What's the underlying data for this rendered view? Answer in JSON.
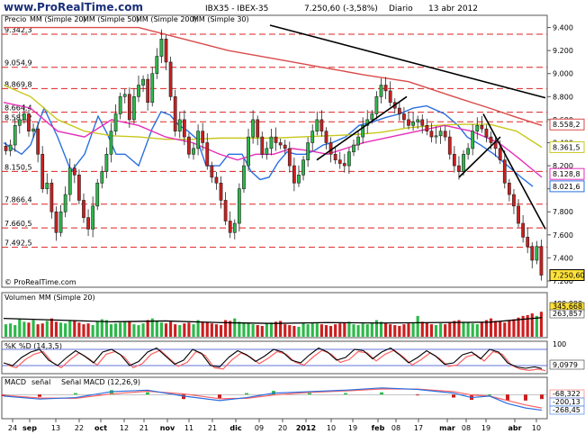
{
  "header": {
    "logo": "www.ProRealTime.com",
    "symbol": "IBX35 - IBEX-35",
    "last": "7.250,60 (-3,58%)",
    "period": "Diario",
    "date": "13 abr 2012",
    "watermark": "© ProRealTime.com"
  },
  "colors": {
    "up": "#2db84a",
    "down": "#cc1f1f",
    "sma20": "#2a6fe0",
    "sma50": "#c8c81e",
    "sma200": "#d94a4a",
    "sma30": "#e62fb8",
    "hlines": "#dd2222",
    "trend": "#000000",
    "volume_up": "#2db84a",
    "volume_down": "#cc1f1f",
    "pct_k": "#000000",
    "pct_d": "#ff6060",
    "macd": "#2a6fe0",
    "signal": "#ff6060",
    "hist": "#2db84a"
  },
  "legend": {
    "precio": "Precio",
    "sma20": "MM (Simple 20)",
    "sma50": "MM (Simple 50)",
    "sma200": "MM (Simple 200)",
    "sma30": "MM (Simple 30)"
  },
  "chart_data": {
    "type": "candlestick",
    "x_labels": [
      "24",
      "sep",
      "13",
      "22",
      "oct",
      "12",
      "21",
      "nov",
      "11",
      "21",
      "dic",
      "09",
      "20",
      "2012",
      "10",
      "19",
      "feb",
      "08",
      "17",
      "mar",
      "08",
      "19",
      "abr",
      "10"
    ],
    "ylim": [
      7200,
      9420
    ],
    "y_ticks": [
      "9.400",
      "9.200",
      "9.000",
      "8.800",
      "8.600",
      "8.400",
      "8.200",
      "8.000",
      "7.800",
      "7.600",
      "7.400",
      "7.200"
    ],
    "y_tick_values": [
      9400,
      9200,
      9000,
      8800,
      8600,
      8400,
      8200,
      8000,
      7800,
      7600,
      7400,
      7200
    ],
    "hlines": [
      {
        "label": "9.342,3",
        "value": 9342.3
      },
      {
        "label": "9.054,9",
        "value": 9054.9
      },
      {
        "label": "8.869,8",
        "value": 8869.8
      },
      {
        "label": "8.664,4",
        "value": 8664.4
      },
      {
        "label": "8.581,2",
        "value": 8581.2
      },
      {
        "label": "8.150,5",
        "value": 8150.5
      },
      {
        "label": "7.866,4",
        "value": 7866.4
      },
      {
        "label": "7.660,5",
        "value": 7660.5
      },
      {
        "label": "7.492,5",
        "value": 7492.5
      }
    ],
    "closes": [
      8330,
      8380,
      8550,
      8600,
      8650,
      8500,
      8520,
      8300,
      8000,
      8050,
      7800,
      7620,
      7800,
      7950,
      8180,
      8120,
      7900,
      7750,
      7650,
      7850,
      8050,
      8150,
      8300,
      8500,
      8650,
      8800,
      8820,
      8600,
      8800,
      8900,
      8950,
      8750,
      9000,
      9150,
      9300,
      9100,
      8800,
      8500,
      8600,
      8450,
      8300,
      8350,
      8500,
      8400,
      8200,
      8100,
      8050,
      7900,
      7720,
      7620,
      7700,
      8000,
      8200,
      8450,
      8600,
      8450,
      8300,
      8350,
      8450,
      8400,
      8380,
      8350,
      8200,
      8050,
      8120,
      8250,
      8400,
      8500,
      8600,
      8500,
      8400,
      8300,
      8250,
      8220,
      8200,
      8320,
      8380,
      8450,
      8550,
      8600,
      8650,
      8800,
      8900,
      8850,
      8750,
      8700,
      8650,
      8600,
      8550,
      8580,
      8600,
      8550,
      8500,
      8450,
      8460,
      8500,
      8450,
      8300,
      8200,
      8150,
      8300,
      8350,
      8500,
      8550,
      8520,
      8450,
      8400,
      8350,
      8250,
      8050,
      7950,
      7850,
      7700,
      7580,
      7500,
      7380,
      7500,
      7250
    ],
    "ma_series": [
      {
        "name": "MM (Simple 20)",
        "color_key": "sma20",
        "points": [
          [
            0,
            8400
          ],
          [
            20,
            8300
          ],
          [
            30,
            8380
          ],
          [
            45,
            8700
          ],
          [
            60,
            8450
          ],
          [
            75,
            8150
          ],
          [
            90,
            8300
          ],
          [
            105,
            8630
          ],
          [
            115,
            8480
          ],
          [
            125,
            8300
          ],
          [
            135,
            8300
          ],
          [
            150,
            8200
          ],
          [
            165,
            8520
          ],
          [
            175,
            8670
          ],
          [
            185,
            8640
          ],
          [
            195,
            8550
          ],
          [
            205,
            8500
          ],
          [
            215,
            8430
          ],
          [
            225,
            8200
          ],
          [
            240,
            8200
          ],
          [
            250,
            8300
          ],
          [
            265,
            8300
          ],
          [
            275,
            8150
          ],
          [
            285,
            8080
          ],
          [
            295,
            8100
          ],
          [
            305,
            8230
          ],
          [
            315,
            8320
          ],
          [
            325,
            8300
          ],
          [
            335,
            8300
          ],
          [
            345,
            8330
          ],
          [
            355,
            8380
          ],
          [
            365,
            8400
          ],
          [
            380,
            8450
          ],
          [
            395,
            8550
          ],
          [
            410,
            8580
          ],
          [
            425,
            8620
          ],
          [
            440,
            8650
          ],
          [
            455,
            8700
          ],
          [
            470,
            8720
          ],
          [
            490,
            8650
          ],
          [
            505,
            8550
          ],
          [
            515,
            8450
          ],
          [
            530,
            8380
          ],
          [
            545,
            8300
          ],
          [
            560,
            8200
          ],
          [
            575,
            8100
          ],
          [
            588,
            8020
          ]
        ]
      },
      {
        "name": "MM (Simple 50)",
        "color_key": "sma50",
        "points": [
          [
            0,
            8900
          ],
          [
            30,
            8800
          ],
          [
            60,
            8600
          ],
          [
            90,
            8500
          ],
          [
            120,
            8460
          ],
          [
            150,
            8450
          ],
          [
            180,
            8430
          ],
          [
            210,
            8430
          ],
          [
            240,
            8440
          ],
          [
            270,
            8440
          ],
          [
            300,
            8440
          ],
          [
            330,
            8450
          ],
          [
            360,
            8460
          ],
          [
            390,
            8470
          ],
          [
            420,
            8490
          ],
          [
            450,
            8530
          ],
          [
            480,
            8550
          ],
          [
            510,
            8560
          ],
          [
            540,
            8560
          ],
          [
            570,
            8500
          ],
          [
            598,
            8360
          ]
        ]
      },
      {
        "name": "MM (Simple 200)",
        "color_key": "sma200",
        "points": [
          [
            0,
            9400
          ],
          [
            100,
            9400
          ],
          [
            150,
            9400
          ],
          [
            200,
            9300
          ],
          [
            250,
            9200
          ],
          [
            300,
            9130
          ],
          [
            350,
            9060
          ],
          [
            400,
            8990
          ],
          [
            450,
            8930
          ],
          [
            500,
            8800
          ],
          [
            540,
            8700
          ],
          [
            570,
            8620
          ],
          [
            598,
            8550
          ]
        ]
      },
      {
        "name": "MM (Simple 30)",
        "color_key": "sma30",
        "points": [
          [
            0,
            8750
          ],
          [
            30,
            8700
          ],
          [
            60,
            8500
          ],
          [
            90,
            8450
          ],
          [
            120,
            8600
          ],
          [
            150,
            8550
          ],
          [
            180,
            8450
          ],
          [
            210,
            8400
          ],
          [
            240,
            8300
          ],
          [
            260,
            8250
          ],
          [
            280,
            8300
          ],
          [
            300,
            8300
          ],
          [
            320,
            8350
          ],
          [
            340,
            8330
          ],
          [
            360,
            8300
          ],
          [
            380,
            8350
          ],
          [
            400,
            8400
          ],
          [
            430,
            8450
          ],
          [
            460,
            8500
          ],
          [
            490,
            8550
          ],
          [
            520,
            8500
          ],
          [
            550,
            8400
          ],
          [
            570,
            8280
          ],
          [
            598,
            8100
          ]
        ]
      }
    ],
    "trendlines": [
      {
        "from": [
          300,
          9420
        ],
        "to": [
          606,
          8790
        ]
      },
      {
        "from": [
          352,
          8250
        ],
        "to": [
          452,
          8800
        ]
      },
      {
        "from": [
          510,
          8100
        ],
        "to": [
          556,
          8450
        ]
      },
      {
        "from": [
          537,
          8650
        ],
        "to": [
          606,
          7650
        ]
      }
    ],
    "last_labels": [
      {
        "text": "8.558,2",
        "value": 8558.2,
        "color_key": "sma200"
      },
      {
        "text": "8.361,5",
        "value": 8361.5,
        "color_key": "sma50"
      },
      {
        "text": "8.128,8",
        "value": 8128.8,
        "color_key": "sma30"
      },
      {
        "text": "8.021,6",
        "value": 8021.6,
        "color_key": "sma20"
      },
      {
        "text": "7.250,60",
        "value": 7250.6,
        "color_key": "price"
      }
    ],
    "volume": {
      "label": "Volumen",
      "ma_label": "MM (Simple 20)",
      "ylim": [
        0,
        400
      ],
      "y_ticks": [
        "400,000"
      ],
      "last_labels": [
        "345,668",
        "263,857"
      ],
      "values": [
        150,
        160,
        140,
        210,
        180,
        170,
        200,
        150,
        160,
        190,
        220,
        180,
        170,
        160,
        190,
        200,
        170,
        150,
        160,
        140,
        180,
        210,
        200,
        150,
        160,
        170,
        180,
        190,
        150,
        140,
        160,
        200,
        220,
        190,
        170,
        160,
        180,
        150,
        140,
        160,
        170,
        150,
        200,
        180,
        170,
        160,
        150,
        140,
        200,
        190,
        220,
        180,
        170,
        160,
        150,
        140,
        130,
        160,
        170,
        180,
        190,
        150,
        140,
        130,
        120,
        160,
        150,
        170,
        160,
        150,
        140,
        130,
        150,
        160,
        170,
        180,
        150,
        140,
        160,
        150,
        170,
        200,
        180,
        160,
        150,
        140,
        130,
        150,
        160,
        170,
        250,
        180,
        170,
        150,
        140,
        160,
        150,
        170,
        190,
        200,
        180,
        170,
        160,
        150,
        180,
        200,
        220,
        190,
        180,
        170,
        200,
        210,
        230,
        250,
        260,
        280,
        250,
        300
      ],
      "ma": [
        [
          0,
          220
        ],
        [
          60,
          200
        ],
        [
          120,
          180
        ],
        [
          180,
          190
        ],
        [
          240,
          170
        ],
        [
          300,
          160
        ],
        [
          360,
          170
        ],
        [
          420,
          165
        ],
        [
          480,
          170
        ],
        [
          540,
          175
        ],
        [
          598,
          230
        ]
      ]
    },
    "stochastic": {
      "label": "%K",
      "d_label": "%D (14,3,5)",
      "ylim": [
        0,
        100
      ],
      "y_ticks": [
        "100"
      ],
      "last_label": "9,0979",
      "k": [
        [
          0,
          30
        ],
        [
          10,
          20
        ],
        [
          20,
          50
        ],
        [
          30,
          70
        ],
        [
          40,
          80
        ],
        [
          50,
          40
        ],
        [
          60,
          20
        ],
        [
          70,
          50
        ],
        [
          80,
          75
        ],
        [
          90,
          55
        ],
        [
          100,
          30
        ],
        [
          110,
          70
        ],
        [
          120,
          80
        ],
        [
          130,
          60
        ],
        [
          140,
          20
        ],
        [
          150,
          35
        ],
        [
          160,
          70
        ],
        [
          170,
          85
        ],
        [
          180,
          55
        ],
        [
          190,
          25
        ],
        [
          200,
          40
        ],
        [
          210,
          80
        ],
        [
          220,
          65
        ],
        [
          230,
          20
        ],
        [
          240,
          15
        ],
        [
          250,
          50
        ],
        [
          260,
          75
        ],
        [
          270,
          60
        ],
        [
          280,
          35
        ],
        [
          290,
          55
        ],
        [
          300,
          80
        ],
        [
          310,
          70
        ],
        [
          320,
          40
        ],
        [
          330,
          30
        ],
        [
          340,
          60
        ],
        [
          350,
          85
        ],
        [
          360,
          70
        ],
        [
          370,
          40
        ],
        [
          380,
          50
        ],
        [
          390,
          80
        ],
        [
          400,
          75
        ],
        [
          410,
          45
        ],
        [
          420,
          70
        ],
        [
          430,
          85
        ],
        [
          440,
          60
        ],
        [
          450,
          30
        ],
        [
          460,
          50
        ],
        [
          470,
          75
        ],
        [
          480,
          55
        ],
        [
          490,
          25
        ],
        [
          500,
          30
        ],
        [
          510,
          60
        ],
        [
          520,
          70
        ],
        [
          530,
          45
        ],
        [
          540,
          80
        ],
        [
          550,
          70
        ],
        [
          560,
          30
        ],
        [
          570,
          15
        ],
        [
          580,
          10
        ],
        [
          590,
          15
        ],
        [
          598,
          9
        ]
      ]
    },
    "macd": {
      "label": "MACD",
      "signal_label": "señal",
      "full_label": "Señal MACD (12,26,9)",
      "ylim": [
        -300,
        100
      ],
      "y_ticks": [
        "0"
      ],
      "last_labels": [
        "-68,322",
        "-200,13",
        "-268,45"
      ],
      "macd": [
        [
          0,
          -20
        ],
        [
          40,
          -60
        ],
        [
          80,
          -40
        ],
        [
          120,
          40
        ],
        [
          160,
          60
        ],
        [
          200,
          -20
        ],
        [
          240,
          -80
        ],
        [
          270,
          -40
        ],
        [
          300,
          20
        ],
        [
          340,
          40
        ],
        [
          380,
          60
        ],
        [
          420,
          90
        ],
        [
          460,
          70
        ],
        [
          500,
          20
        ],
        [
          520,
          -40
        ],
        [
          540,
          -20
        ],
        [
          560,
          -120
        ],
        [
          580,
          -180
        ],
        [
          598,
          -210
        ]
      ],
      "signal": [
        [
          0,
          -10
        ],
        [
          40,
          -45
        ],
        [
          80,
          -50
        ],
        [
          120,
          10
        ],
        [
          160,
          45
        ],
        [
          200,
          10
        ],
        [
          240,
          -55
        ],
        [
          270,
          -50
        ],
        [
          300,
          -5
        ],
        [
          340,
          30
        ],
        [
          380,
          50
        ],
        [
          420,
          75
        ],
        [
          460,
          75
        ],
        [
          500,
          40
        ],
        [
          520,
          -5
        ],
        [
          540,
          -20
        ],
        [
          560,
          -80
        ],
        [
          580,
          -140
        ],
        [
          598,
          -180
        ]
      ]
    }
  }
}
